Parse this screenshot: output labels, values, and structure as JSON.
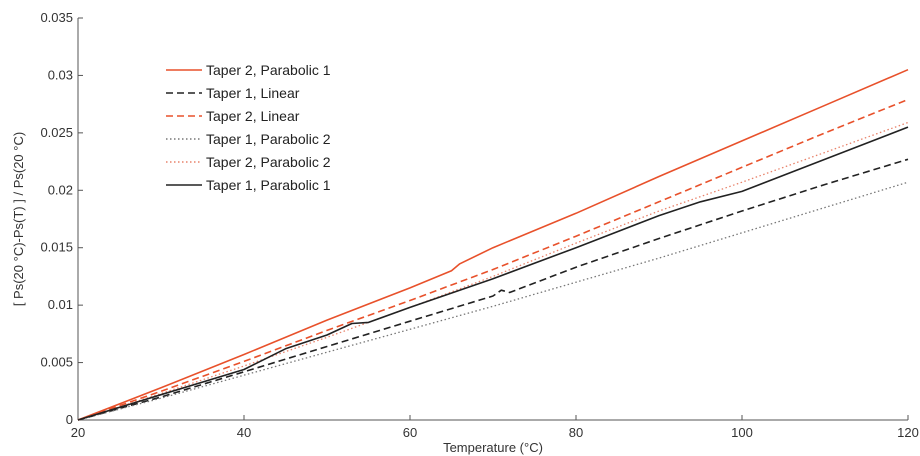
{
  "chart_data": {
    "type": "line",
    "title": "",
    "xlabel": "Temperature (°C)",
    "ylabel": "[ Ps(20 °C)-Ps(T) ] / Ps(20 °C)",
    "xlim": [
      20,
      120
    ],
    "ylim": [
      0,
      0.035
    ],
    "xticks": [
      20,
      40,
      60,
      80,
      100,
      120
    ],
    "xtick_labels": [
      "20",
      "40",
      "60",
      "80",
      "100",
      "120"
    ],
    "yticks": [
      0,
      0.005,
      0.01,
      0.015,
      0.02,
      0.025,
      0.03,
      0.035
    ],
    "ytick_labels": [
      "0",
      "0.005",
      "0.01",
      "0.015",
      "0.02",
      "0.025",
      "0.03",
      "0.035"
    ],
    "grid": false,
    "legend": {
      "position": "top-left"
    },
    "series": [
      {
        "name": "Taper 2, Parabolic 1",
        "color": "#e8512b",
        "dash": "solid",
        "x": [
          20,
          30,
          40,
          50,
          60,
          65,
          66,
          70,
          80,
          90,
          100,
          110,
          120
        ],
        "y": [
          0,
          0.0028,
          0.0057,
          0.0087,
          0.0115,
          0.013,
          0.0136,
          0.015,
          0.018,
          0.0212,
          0.0243,
          0.0274,
          0.0305
        ]
      },
      {
        "name": "Taper 1, Linear",
        "color": "#222222",
        "dash": "dashed",
        "x": [
          20,
          30,
          40,
          50,
          60,
          70,
          71,
          72,
          80,
          90,
          100,
          110,
          120
        ],
        "y": [
          0,
          0.002,
          0.0042,
          0.0064,
          0.0086,
          0.0108,
          0.0113,
          0.0111,
          0.0133,
          0.0158,
          0.0182,
          0.0205,
          0.0227
        ]
      },
      {
        "name": "Taper 2, Linear",
        "color": "#e8512b",
        "dash": "dashed",
        "x": [
          20,
          30,
          40,
          50,
          60,
          70,
          80,
          90,
          100,
          110,
          120
        ],
        "y": [
          0,
          0.0025,
          0.0051,
          0.0078,
          0.0104,
          0.0131,
          0.016,
          0.019,
          0.022,
          0.025,
          0.0279
        ]
      },
      {
        "name": "Taper 1, Parabolic 2",
        "color": "#777777",
        "dash": "dotted",
        "x": [
          20,
          30,
          40,
          50,
          60,
          70,
          80,
          90,
          100,
          110,
          120
        ],
        "y": [
          0,
          0.0019,
          0.0039,
          0.0059,
          0.0079,
          0.0099,
          0.012,
          0.0141,
          0.0163,
          0.0185,
          0.0207
        ]
      },
      {
        "name": "Taper 2, Parabolic 2",
        "color": "#e8826a",
        "dash": "dotted",
        "x": [
          20,
          30,
          40,
          50,
          60,
          70,
          80,
          90,
          100,
          110,
          120
        ],
        "y": [
          0,
          0.0023,
          0.0047,
          0.0072,
          0.0098,
          0.0125,
          0.0154,
          0.0182,
          0.0207,
          0.0233,
          0.0259
        ]
      },
      {
        "name": "Taper 1, Parabolic 1",
        "color": "#222222",
        "dash": "solid",
        "x": [
          20,
          30,
          40,
          45,
          50,
          53,
          55,
          60,
          70,
          80,
          90,
          95,
          100,
          110,
          120
        ],
        "y": [
          0,
          0.0022,
          0.0044,
          0.0062,
          0.0074,
          0.0084,
          0.0085,
          0.0098,
          0.0123,
          0.015,
          0.0178,
          0.019,
          0.0199,
          0.0227,
          0.0255
        ]
      }
    ]
  }
}
